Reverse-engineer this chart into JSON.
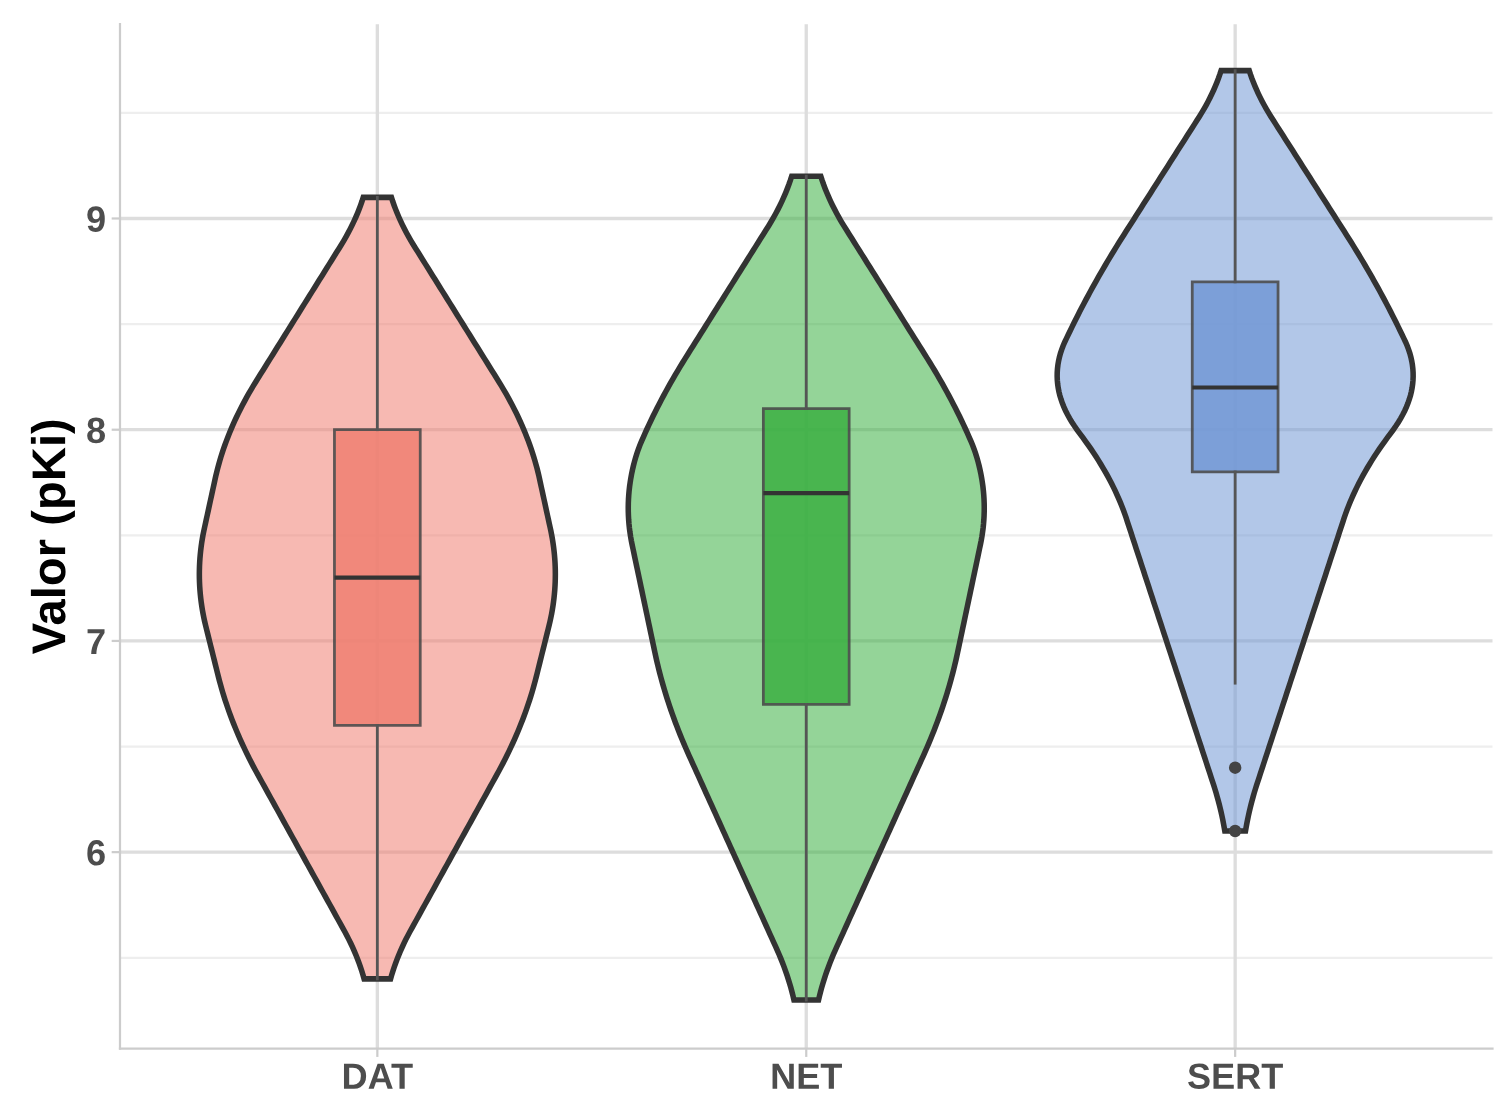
{
  "chart_data": {
    "type": "box",
    "ylabel": "Valor (pKi)",
    "categories": [
      "DAT",
      "NET",
      "SERT"
    ],
    "colors": [
      "#f08072",
      "#3cb043",
      "#7399d6"
    ],
    "boxes": [
      {
        "low": 5.4,
        "q1": 6.6,
        "median": 7.3,
        "q3": 8.0,
        "high": 9.1
      },
      {
        "low": 5.3,
        "q1": 6.7,
        "median": 7.7,
        "q3": 8.1,
        "high": 9.2
      },
      {
        "low": 6.8,
        "q1": 7.8,
        "median": 8.2,
        "q3": 8.7,
        "high": 9.7,
        "outliers": [
          6.4,
          6.1
        ]
      }
    ],
    "ylim": [
      5.07,
      9.92
    ],
    "yticks": [
      6,
      7,
      8,
      9
    ],
    "grid": true
  }
}
